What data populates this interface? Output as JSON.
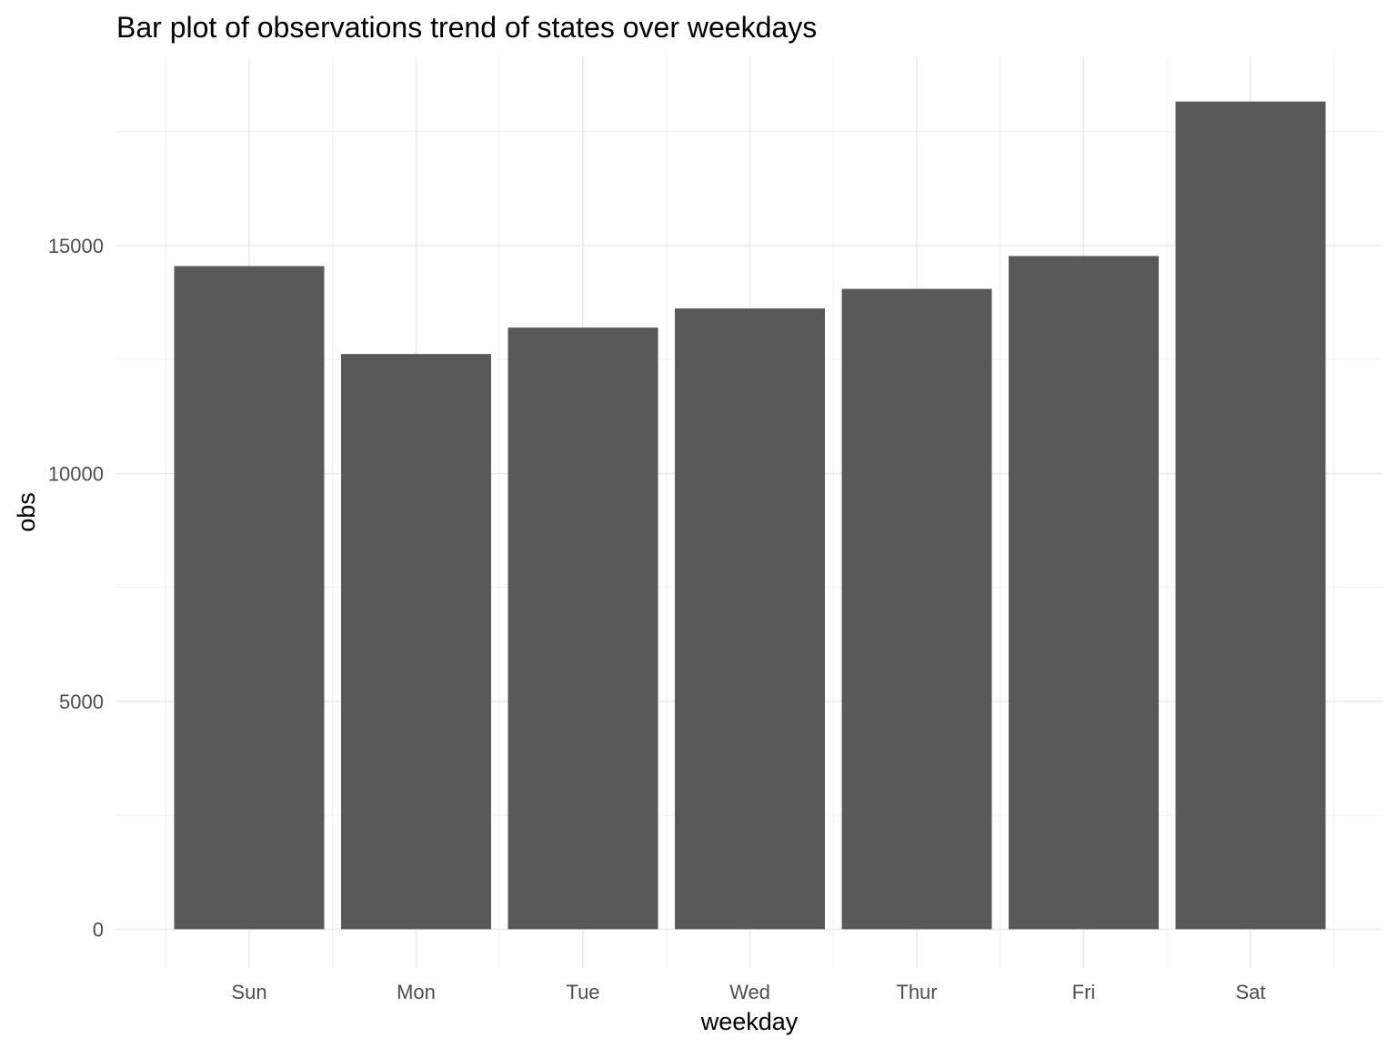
{
  "chart_data": {
    "type": "bar",
    "title": "Bar plot of observations trend of states over weekdays",
    "xlabel": "weekday",
    "ylabel": "obs",
    "categories": [
      "Sun",
      "Mon",
      "Tue",
      "Wed",
      "Thur",
      "Fri",
      "Sat"
    ],
    "values": [
      14550,
      12620,
      13200,
      13620,
      14050,
      14770,
      18160
    ],
    "ylim": [
      -850,
      19150
    ],
    "yticks": [
      0,
      5000,
      10000,
      15000
    ],
    "ytick_labels": [
      "0",
      "5000",
      "10000",
      "15000"
    ],
    "grid": true,
    "legend": "none",
    "bar_color": "#595959"
  }
}
